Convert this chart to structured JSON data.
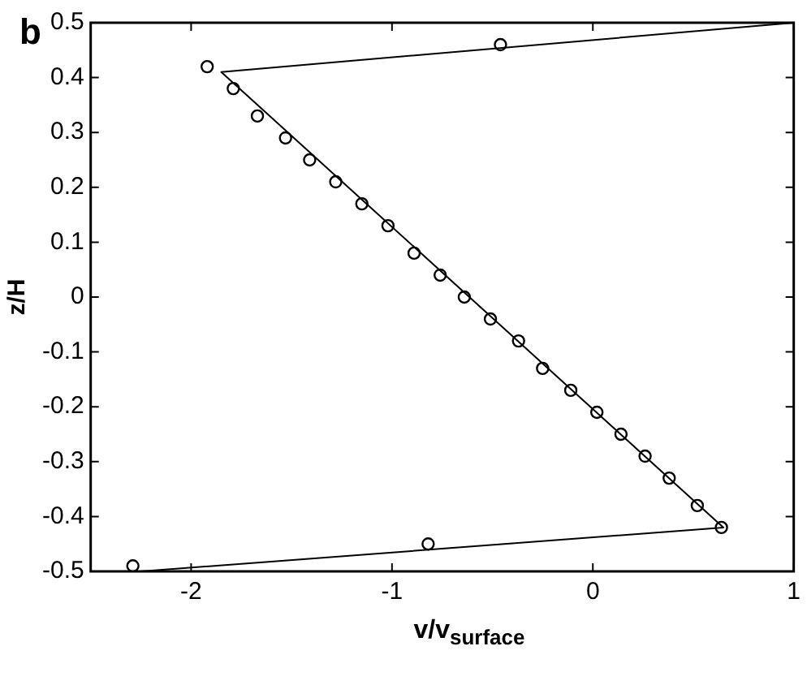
{
  "chart_data": {
    "type": "scatter",
    "xlabel": "v/v$_{surface}$",
    "ylabel": "z/H",
    "annotations": [
      "b"
    ],
    "xlim": [
      -2.5,
      1
    ],
    "xticks": [
      -2,
      -1,
      0,
      1
    ],
    "ylim": [
      -0.5,
      0.5
    ],
    "yticks": [
      -0.5,
      -0.4,
      -0.3,
      -0.2,
      -0.1,
      0,
      0.1,
      0.2,
      0.3,
      0.4,
      0.5
    ],
    "grid": false,
    "legend": false,
    "series": [
      {
        "type": "scatter",
        "marker": "circle",
        "color": "#000000",
        "x": [
          -2.29,
          -0.82,
          -0.46,
          -1.92,
          -1.79,
          -1.67,
          -1.53,
          -1.41,
          -1.28,
          -1.15,
          -1.02,
          -0.89,
          -0.76,
          -0.64,
          -0.51,
          -0.37,
          -0.25,
          -0.11,
          0.02,
          0.14,
          0.26,
          0.38,
          0.52,
          0.64
        ],
        "values": [
          -0.49,
          -0.45,
          0.46,
          0.42,
          0.38,
          0.33,
          0.29,
          0.25,
          0.21,
          0.17,
          0.13,
          0.08,
          0.04,
          0,
          -0.04,
          -0.08,
          -0.13,
          -0.17,
          -0.21,
          -0.25,
          -0.29,
          -0.33,
          -0.38,
          -0.42
        ]
      },
      {
        "type": "line",
        "marker": "none",
        "line_style": "solid",
        "color": "#000000",
        "x": [
          1,
          -1.85,
          0.65,
          -2.25
        ],
        "values": [
          0.5,
          0.41,
          -0.42,
          -0.5
        ]
      }
    ]
  }
}
